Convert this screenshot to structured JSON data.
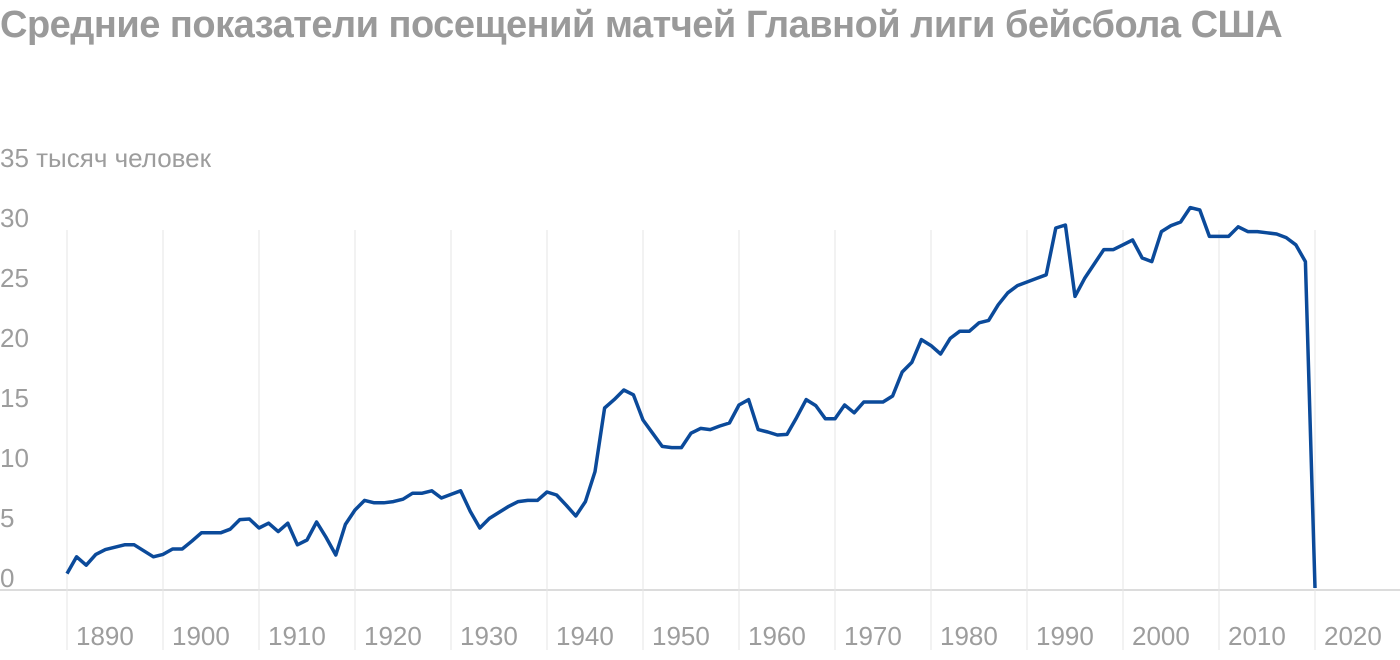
{
  "chart_data": {
    "type": "line",
    "title": "Средние показатели посещений матчей Главной лиги бейсбола США",
    "x": [
      1890,
      1891,
      1892,
      1893,
      1894,
      1895,
      1896,
      1897,
      1898,
      1899,
      1900,
      1901,
      1902,
      1903,
      1904,
      1905,
      1906,
      1907,
      1908,
      1909,
      1910,
      1911,
      1912,
      1913,
      1914,
      1915,
      1916,
      1917,
      1918,
      1919,
      1920,
      1921,
      1922,
      1923,
      1924,
      1925,
      1926,
      1927,
      1928,
      1929,
      1930,
      1931,
      1932,
      1933,
      1934,
      1935,
      1936,
      1937,
      1938,
      1939,
      1940,
      1941,
      1942,
      1943,
      1944,
      1945,
      1946,
      1947,
      1948,
      1949,
      1950,
      1951,
      1952,
      1953,
      1954,
      1955,
      1956,
      1957,
      1958,
      1959,
      1960,
      1961,
      1962,
      1963,
      1964,
      1965,
      1966,
      1967,
      1968,
      1969,
      1970,
      1971,
      1972,
      1973,
      1974,
      1975,
      1976,
      1977,
      1978,
      1979,
      1980,
      1981,
      1982,
      1983,
      1984,
      1985,
      1986,
      1987,
      1988,
      1989,
      1990,
      1991,
      1992,
      1993,
      1994,
      1995,
      1996,
      1997,
      1998,
      1999,
      2000,
      2001,
      2002,
      2003,
      2004,
      2005,
      2006,
      2007,
      2008,
      2009,
      2010,
      2011,
      2012,
      2013,
      2014,
      2015,
      2016,
      2017,
      2018,
      2019,
      2020
    ],
    "series": [
      {
        "color": "#0b4a9a",
        "values": [
          1.2,
          2.6,
          1.9,
          2.8,
          3.2,
          3.4,
          3.6,
          3.6,
          3.1,
          2.6,
          2.8,
          3.25,
          3.25,
          3.9,
          4.6,
          4.6,
          4.6,
          4.9,
          5.7,
          5.75,
          5.0,
          5.4,
          4.7,
          5.4,
          3.6,
          4.0,
          5.5,
          4.2,
          2.75,
          5.3,
          6.5,
          7.3,
          7.1,
          7.1,
          7.2,
          7.4,
          7.9,
          7.9,
          8.1,
          7.5,
          7.8,
          8.1,
          6.4,
          5.0,
          5.8,
          6.3,
          6.8,
          7.2,
          7.3,
          7.3,
          8.0,
          7.75,
          6.9,
          6.0,
          7.2,
          9.7,
          15.0,
          15.7,
          16.5,
          16.1,
          14.0,
          12.9,
          11.8,
          11.7,
          11.7,
          12.9,
          13.3,
          13.2,
          13.5,
          13.75,
          15.25,
          15.7,
          13.2,
          13.0,
          12.75,
          12.8,
          14.2,
          15.7,
          15.2,
          14.1,
          14.1,
          15.25,
          14.6,
          15.5,
          15.5,
          15.5,
          16.0,
          18.0,
          18.8,
          20.7,
          20.2,
          19.5,
          20.8,
          21.4,
          21.4,
          22.1,
          22.3,
          23.6,
          24.6,
          25.2,
          25.5,
          25.8,
          26.1,
          30.0,
          30.25,
          24.3,
          25.8,
          27.0,
          28.2,
          28.2,
          28.6,
          29.0,
          27.5,
          27.2,
          29.7,
          30.2,
          30.5,
          31.7,
          31.5,
          29.3,
          29.3,
          29.3,
          30.1,
          29.7,
          29.7,
          29.6,
          29.5,
          29.2,
          28.6,
          27.2,
          0
        ]
      }
    ],
    "xlim": [
      1890,
      2025
    ],
    "xticks": [
      1890,
      1900,
      1910,
      1920,
      1930,
      1940,
      1950,
      1960,
      1970,
      1980,
      1990,
      2000,
      2010,
      2020
    ],
    "ylim": [
      0,
      35
    ],
    "yticks": [
      0,
      5,
      10,
      15,
      20,
      25,
      30,
      {
        "value": 35,
        "label": "35 тысяч человек"
      }
    ],
    "grid": true
  }
}
